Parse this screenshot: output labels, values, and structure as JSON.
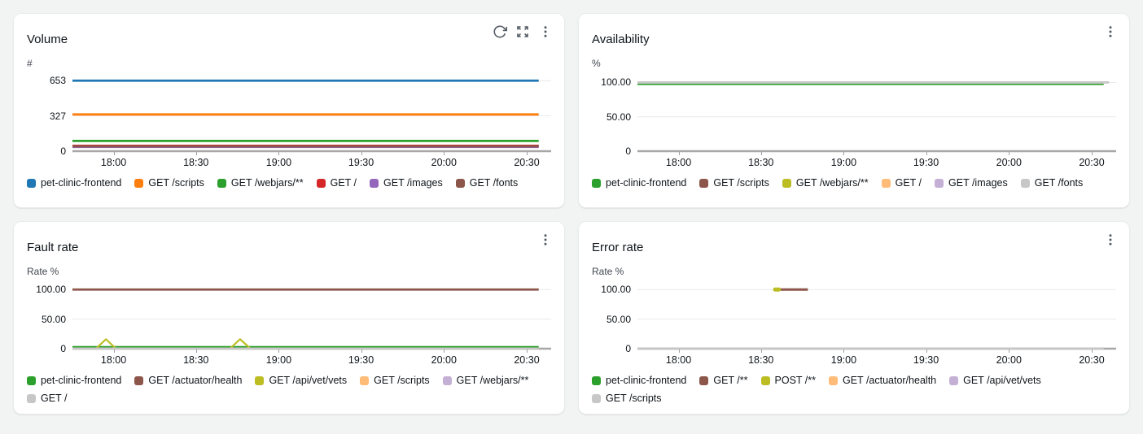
{
  "page": {
    "background": "#f2f3f3",
    "panel_background": "#ffffff"
  },
  "panel_actions": [
    [
      "refresh",
      "expand",
      "menu"
    ],
    [
      "menu"
    ],
    [
      "menu"
    ],
    [
      "menu"
    ]
  ],
  "action_icons": {
    "refresh": "refresh-icon",
    "expand": "expand-icon",
    "menu": "kebab-menu-icon"
  },
  "axis_colors": {
    "zero_axis": "#a7a7a7",
    "gridline": "#e9e9e9",
    "tick": "#9aa0a6"
  },
  "chart_data": [
    {
      "type": "line",
      "title": "Volume",
      "ylabel": "#",
      "ylim": [
        0,
        700
      ],
      "grid": true,
      "legend_position": "bottom",
      "yticks": [
        {
          "label": "653",
          "value": 653
        },
        {
          "label": "327",
          "value": 327
        },
        {
          "label": "0",
          "value": 0
        }
      ],
      "xticks": [
        {
          "label": "18:00",
          "f": 0.086
        },
        {
          "label": "18:30",
          "f": 0.258
        },
        {
          "label": "19:00",
          "f": 0.431
        },
        {
          "label": "19:30",
          "f": 0.603
        },
        {
          "label": "20:00",
          "f": 0.776
        },
        {
          "label": "20:30",
          "f": 0.949
        }
      ],
      "data_end": 0.974,
      "series": [
        {
          "name": "pet-clinic-frontend",
          "color": "#1f77b4",
          "shape": "hline",
          "value": 653
        },
        {
          "name": "GET /scripts",
          "color": "#ff7f0e",
          "shape": "hline",
          "value": 340
        },
        {
          "name": "GET /webjars/**",
          "color": "#2ca02c",
          "shape": "hline",
          "value": 95
        },
        {
          "name": "GET /",
          "color": "#d62728",
          "shape": "hline",
          "value": 50
        },
        {
          "name": "GET /images",
          "color": "#9467bd",
          "shape": "hline",
          "value": 40
        },
        {
          "name": "GET /fonts",
          "color": "#8c564b",
          "shape": "hline",
          "value": 45
        }
      ]
    },
    {
      "type": "line",
      "title": "Availability",
      "ylabel": "%",
      "ylim": [
        0,
        110
      ],
      "grid": true,
      "legend_position": "bottom",
      "yticks": [
        {
          "label": "100.00",
          "value": 100
        },
        {
          "label": "50.00",
          "value": 50
        },
        {
          "label": "0",
          "value": 0
        }
      ],
      "xticks": [
        {
          "label": "18:00",
          "f": 0.086
        },
        {
          "label": "18:30",
          "f": 0.258
        },
        {
          "label": "19:00",
          "f": 0.431
        },
        {
          "label": "19:30",
          "f": 0.603
        },
        {
          "label": "20:00",
          "f": 0.776
        },
        {
          "label": "20:30",
          "f": 0.949
        }
      ],
      "data_end": 0.974,
      "series": [
        {
          "name": "pet-clinic-frontend",
          "color": "#2ca02c",
          "shape": "hline",
          "value": 100
        },
        {
          "name": "GET /scripts",
          "color": "#8c564b",
          "shape": "hline",
          "value": 100
        },
        {
          "name": "GET /webjars/**",
          "color": "#bcbd22",
          "shape": "hline",
          "value": 100
        },
        {
          "name": "GET /",
          "color": "#ffbb78",
          "shape": "hline",
          "value": 100
        },
        {
          "name": "GET /images",
          "color": "#c5b0d5",
          "shape": "hline",
          "value": 100
        },
        {
          "name": "GET /fonts",
          "color": "#c7c7c7",
          "shape": "hline",
          "value": 100,
          "to": 0.985
        }
      ]
    },
    {
      "type": "line",
      "title": "Fault rate",
      "ylabel": "Rate %",
      "ylim": [
        0,
        110
      ],
      "grid": true,
      "legend_position": "bottom",
      "yticks": [
        {
          "label": "100.00",
          "value": 100
        },
        {
          "label": "50.00",
          "value": 50
        },
        {
          "label": "0",
          "value": 0
        }
      ],
      "xticks": [
        {
          "label": "18:00",
          "f": 0.086
        },
        {
          "label": "18:30",
          "f": 0.258
        },
        {
          "label": "19:00",
          "f": 0.431
        },
        {
          "label": "19:30",
          "f": 0.603
        },
        {
          "label": "20:00",
          "f": 0.776
        },
        {
          "label": "20:30",
          "f": 0.949
        }
      ],
      "data_end": 0.974,
      "series": [
        {
          "name": "pet-clinic-frontend",
          "color": "#2ca02c",
          "shape": "hline",
          "value": 2.5
        },
        {
          "name": "GET /actuator/health",
          "color": "#8c564b",
          "shape": "hline",
          "value": 100
        },
        {
          "name": "GET /api/vet/vets",
          "color": "#bcbd22",
          "shape": "polyline",
          "points": [
            [
              0,
              0
            ],
            [
              0.049,
              0
            ],
            [
              0.07,
              16
            ],
            [
              0.091,
              0
            ],
            [
              0.329,
              0
            ],
            [
              0.35,
              16
            ],
            [
              0.372,
              0
            ],
            [
              0.974,
              0
            ]
          ]
        },
        {
          "name": "GET /scripts",
          "color": "#ffbb78",
          "shape": "hline",
          "value": 0
        },
        {
          "name": "GET /webjars/**",
          "color": "#c5b0d5",
          "shape": "hline",
          "value": 0
        },
        {
          "name": "GET /",
          "color": "#c7c7c7",
          "shape": "hline",
          "value": 0
        }
      ]
    },
    {
      "type": "line",
      "title": "Error rate",
      "ylabel": "Rate %",
      "ylim": [
        0,
        110
      ],
      "grid": true,
      "legend_position": "bottom",
      "yticks": [
        {
          "label": "100.00",
          "value": 100
        },
        {
          "label": "50.00",
          "value": 50
        },
        {
          "label": "0",
          "value": 0
        }
      ],
      "xticks": [
        {
          "label": "18:00",
          "f": 0.086
        },
        {
          "label": "18:30",
          "f": 0.258
        },
        {
          "label": "19:00",
          "f": 0.431
        },
        {
          "label": "19:30",
          "f": 0.603
        },
        {
          "label": "20:00",
          "f": 0.776
        },
        {
          "label": "20:30",
          "f": 0.949
        }
      ],
      "data_end": 0.974,
      "series": [
        {
          "name": "pet-clinic-frontend",
          "color": "#2ca02c",
          "shape": "hline",
          "value": 0
        },
        {
          "name": "GET /**",
          "color": "#8c564b",
          "shape": "segment",
          "value": 100,
          "from": 0.295,
          "to": 0.356
        },
        {
          "name": "POST /**",
          "color": "#bcbd22",
          "shape": "point",
          "value": 100,
          "f": 0.2915
        },
        {
          "name": "GET /actuator/health",
          "color": "#ffbb78",
          "shape": "hline",
          "value": 0
        },
        {
          "name": "GET /api/vet/vets",
          "color": "#c5b0d5",
          "shape": "hline",
          "value": 0
        },
        {
          "name": "GET /scripts",
          "color": "#c7c7c7",
          "shape": "hline",
          "value": 0
        }
      ]
    }
  ]
}
